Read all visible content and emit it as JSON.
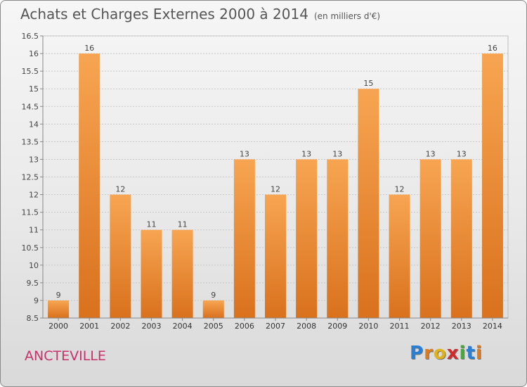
{
  "title": "Achats et Charges Externes 2000 à 2014",
  "subtitle": "(en milliers d'€)",
  "commune": "ANCTEVILLE",
  "logo": {
    "letters": [
      "P",
      "r",
      "o",
      "x",
      "i",
      "t",
      "i"
    ],
    "colors": [
      "#2a7fd4",
      "#e07a1a",
      "#e0b21a",
      "#d02a2a",
      "#48a83a",
      "#2a7fd4",
      "#e07a1a"
    ]
  },
  "chart_data": {
    "type": "bar",
    "categories": [
      "2000",
      "2001",
      "2002",
      "2003",
      "2004",
      "2005",
      "2006",
      "2007",
      "2008",
      "2009",
      "2010",
      "2011",
      "2012",
      "2013",
      "2014"
    ],
    "values": [
      9,
      16,
      12,
      11,
      11,
      9,
      13,
      12,
      13,
      13,
      15,
      12,
      13,
      13,
      16
    ],
    "data_labels": [
      "9",
      "16",
      "12",
      "11",
      "11",
      "9",
      "13",
      "12",
      "13",
      "13",
      "15",
      "12",
      "13",
      "13",
      "16"
    ],
    "ylim": [
      8.5,
      16.5
    ],
    "yticks": [
      "8.5",
      "9",
      "9.5",
      "10",
      "10.5",
      "11",
      "11.5",
      "12",
      "12.5",
      "13",
      "13.5",
      "14",
      "14.5",
      "15",
      "15.5",
      "16",
      "16.5"
    ],
    "grid": true,
    "bar_color": "#f28a2e"
  }
}
